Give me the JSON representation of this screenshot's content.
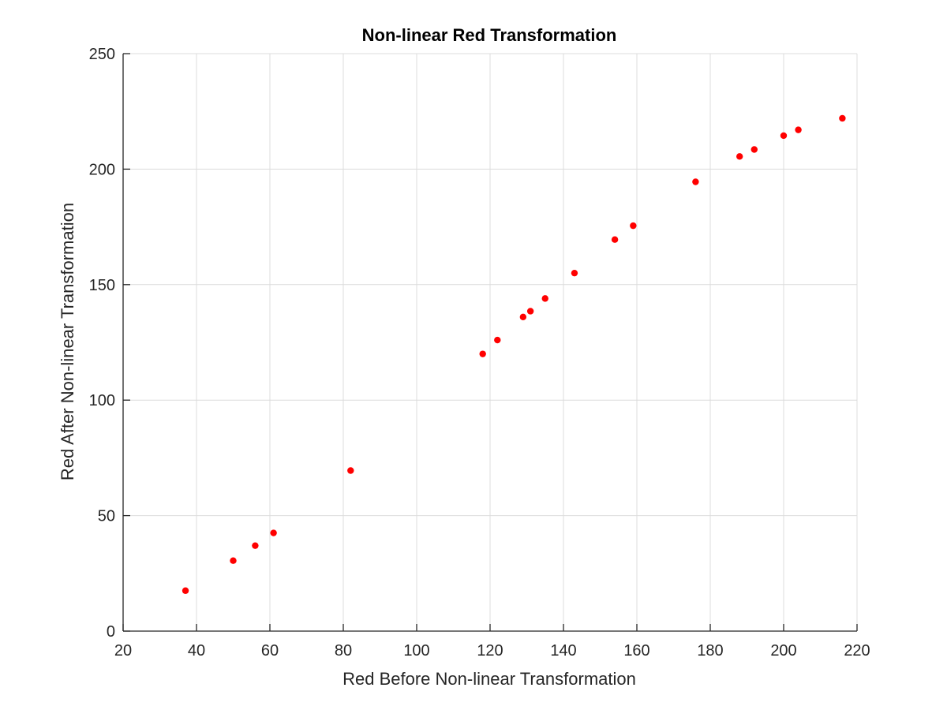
{
  "chart_data": {
    "type": "scatter",
    "title": "Non-linear Red Transformation",
    "xlabel": "Red Before Non-linear Transformation",
    "ylabel": "Red After Non-linear Transformation",
    "xlim": [
      20,
      220
    ],
    "ylim": [
      0,
      250
    ],
    "xticks": [
      20,
      40,
      60,
      80,
      100,
      120,
      140,
      160,
      180,
      200,
      220
    ],
    "yticks": [
      0,
      50,
      100,
      150,
      200,
      250
    ],
    "grid": true,
    "marker_color": "#ff0000",
    "series": [
      {
        "x": [
          37,
          50,
          56,
          61,
          82,
          118,
          122,
          129,
          131,
          135,
          143,
          154,
          159,
          176,
          188,
          192,
          200,
          204,
          216
        ],
        "y": [
          17.5,
          30.5,
          37,
          42.5,
          69.5,
          120,
          126,
          136,
          138.5,
          144,
          155,
          169.5,
          175.5,
          194.5,
          205.5,
          208.5,
          214.5,
          217,
          222
        ]
      }
    ]
  }
}
